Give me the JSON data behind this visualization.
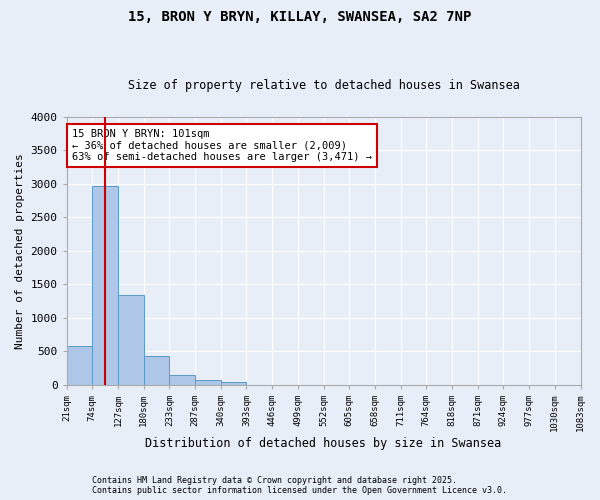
{
  "title": "15, BRON Y BRYN, KILLAY, SWANSEA, SA2 7NP",
  "subtitle": "Size of property relative to detached houses in Swansea",
  "xlabel": "Distribution of detached houses by size in Swansea",
  "ylabel": "Number of detached properties",
  "bar_values": [
    580,
    2970,
    1340,
    430,
    150,
    70,
    45,
    0,
    0,
    0,
    0,
    0,
    0,
    0,
    0,
    0,
    0,
    0,
    0,
    0
  ],
  "bin_labels": [
    "21sqm",
    "74sqm",
    "127sqm",
    "180sqm",
    "233sqm",
    "287sqm",
    "340sqm",
    "393sqm",
    "446sqm",
    "499sqm",
    "552sqm",
    "605sqm",
    "658sqm",
    "711sqm",
    "764sqm",
    "818sqm",
    "871sqm",
    "924sqm",
    "977sqm",
    "1030sqm",
    "1083sqm"
  ],
  "bar_color": "#aec6e8",
  "bar_edge_color": "#5a9ac8",
  "vline_color": "#cc0000",
  "vline_x": 1.5,
  "annotation_text": "15 BRON Y BRYN: 101sqm\n← 36% of detached houses are smaller (2,009)\n63% of semi-detached houses are larger (3,471) →",
  "annotation_box_color": "#cc0000",
  "ylim": [
    0,
    4000
  ],
  "yticks": [
    0,
    500,
    1000,
    1500,
    2000,
    2500,
    3000,
    3500,
    4000
  ],
  "footer_line1": "Contains HM Land Registry data © Crown copyright and database right 2025.",
  "footer_line2": "Contains public sector information licensed under the Open Government Licence v3.0.",
  "bg_color": "#e8eef8",
  "plot_bg_color": "#e8eef8",
  "grid_color": "#ffffff"
}
